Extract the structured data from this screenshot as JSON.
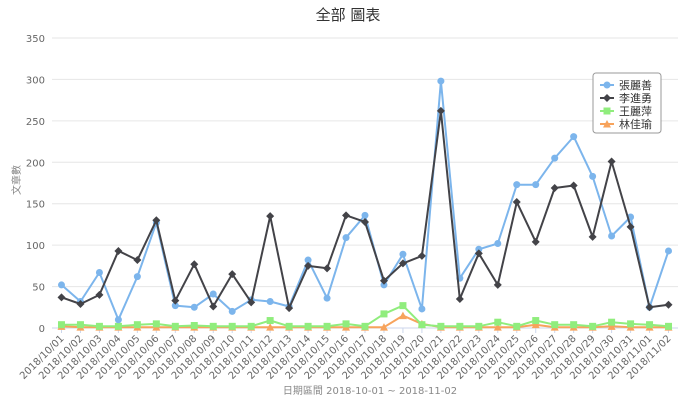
{
  "chart_data": {
    "type": "line",
    "title": "全部 圖表",
    "xlabel": "日期區間 2018-10-01 ~ 2018-11-02",
    "ylabel": "文章數",
    "ylim": [
      0,
      350
    ],
    "yticks": [
      0,
      50,
      100,
      150,
      200,
      250,
      300,
      350
    ],
    "grid": true,
    "legend_position": "top-right",
    "categories": [
      "2018/10/01",
      "2018/10/02",
      "2018/10/03",
      "2018/10/04",
      "2018/10/05",
      "2018/10/06",
      "2018/10/07",
      "2018/10/08",
      "2018/10/09",
      "2018/10/10",
      "2018/10/11",
      "2018/10/12",
      "2018/10/13",
      "2018/10/14",
      "2018/10/15",
      "2018/10/16",
      "2018/10/17",
      "2018/10/18",
      "2018/10/19",
      "2018/10/20",
      "2018/10/21",
      "2018/10/22",
      "2018/10/23",
      "2018/10/24",
      "2018/10/25",
      "2018/10/26",
      "2018/10/27",
      "2018/10/28",
      "2018/10/29",
      "2018/10/30",
      "2018/10/31",
      "2018/11/01",
      "2018/11/02"
    ],
    "series": [
      {
        "name": "張麗善",
        "color": "#7cb5ec",
        "marker": "circle",
        "values": [
          52,
          32,
          67,
          10,
          62,
          127,
          27,
          25,
          41,
          20,
          34,
          32,
          26,
          82,
          36,
          109,
          136,
          52,
          89,
          23,
          298,
          60,
          95,
          102,
          173,
          173,
          205,
          231,
          183,
          111,
          134,
          25,
          93
        ]
      },
      {
        "name": "李進勇",
        "color": "#434348",
        "marker": "diamond",
        "values": [
          37,
          29,
          40,
          93,
          82,
          130,
          33,
          77,
          26,
          65,
          31,
          135,
          24,
          75,
          72,
          136,
          128,
          57,
          78,
          87,
          262,
          35,
          90,
          52,
          152,
          104,
          169,
          172,
          110,
          201,
          122,
          25,
          28
        ]
      },
      {
        "name": "王麗萍",
        "color": "#90ed7d",
        "marker": "square",
        "values": [
          4,
          4,
          2,
          2,
          4,
          5,
          2,
          3,
          2,
          2,
          2,
          9,
          2,
          2,
          2,
          5,
          2,
          17,
          27,
          4,
          2,
          2,
          2,
          7,
          2,
          9,
          4,
          4,
          2,
          7,
          5,
          4,
          2
        ]
      },
      {
        "name": "林佳瑜",
        "color": "#f7a35c",
        "marker": "triangle",
        "values": [
          2,
          1,
          1,
          1,
          1,
          1,
          1,
          1,
          1,
          1,
          1,
          1,
          1,
          1,
          1,
          1,
          1,
          1,
          15,
          5,
          1,
          1,
          1,
          1,
          1,
          4,
          1,
          1,
          1,
          2,
          1,
          1,
          1
        ]
      }
    ]
  }
}
